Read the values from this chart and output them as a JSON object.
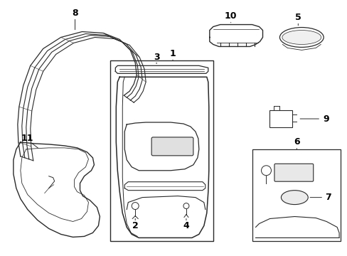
{
  "background_color": "#ffffff",
  "line_color": "#2a2a2a",
  "label_color": "#000000",
  "figsize": [
    4.89,
    3.6
  ],
  "dpi": 100,
  "label_fontsize": 9
}
